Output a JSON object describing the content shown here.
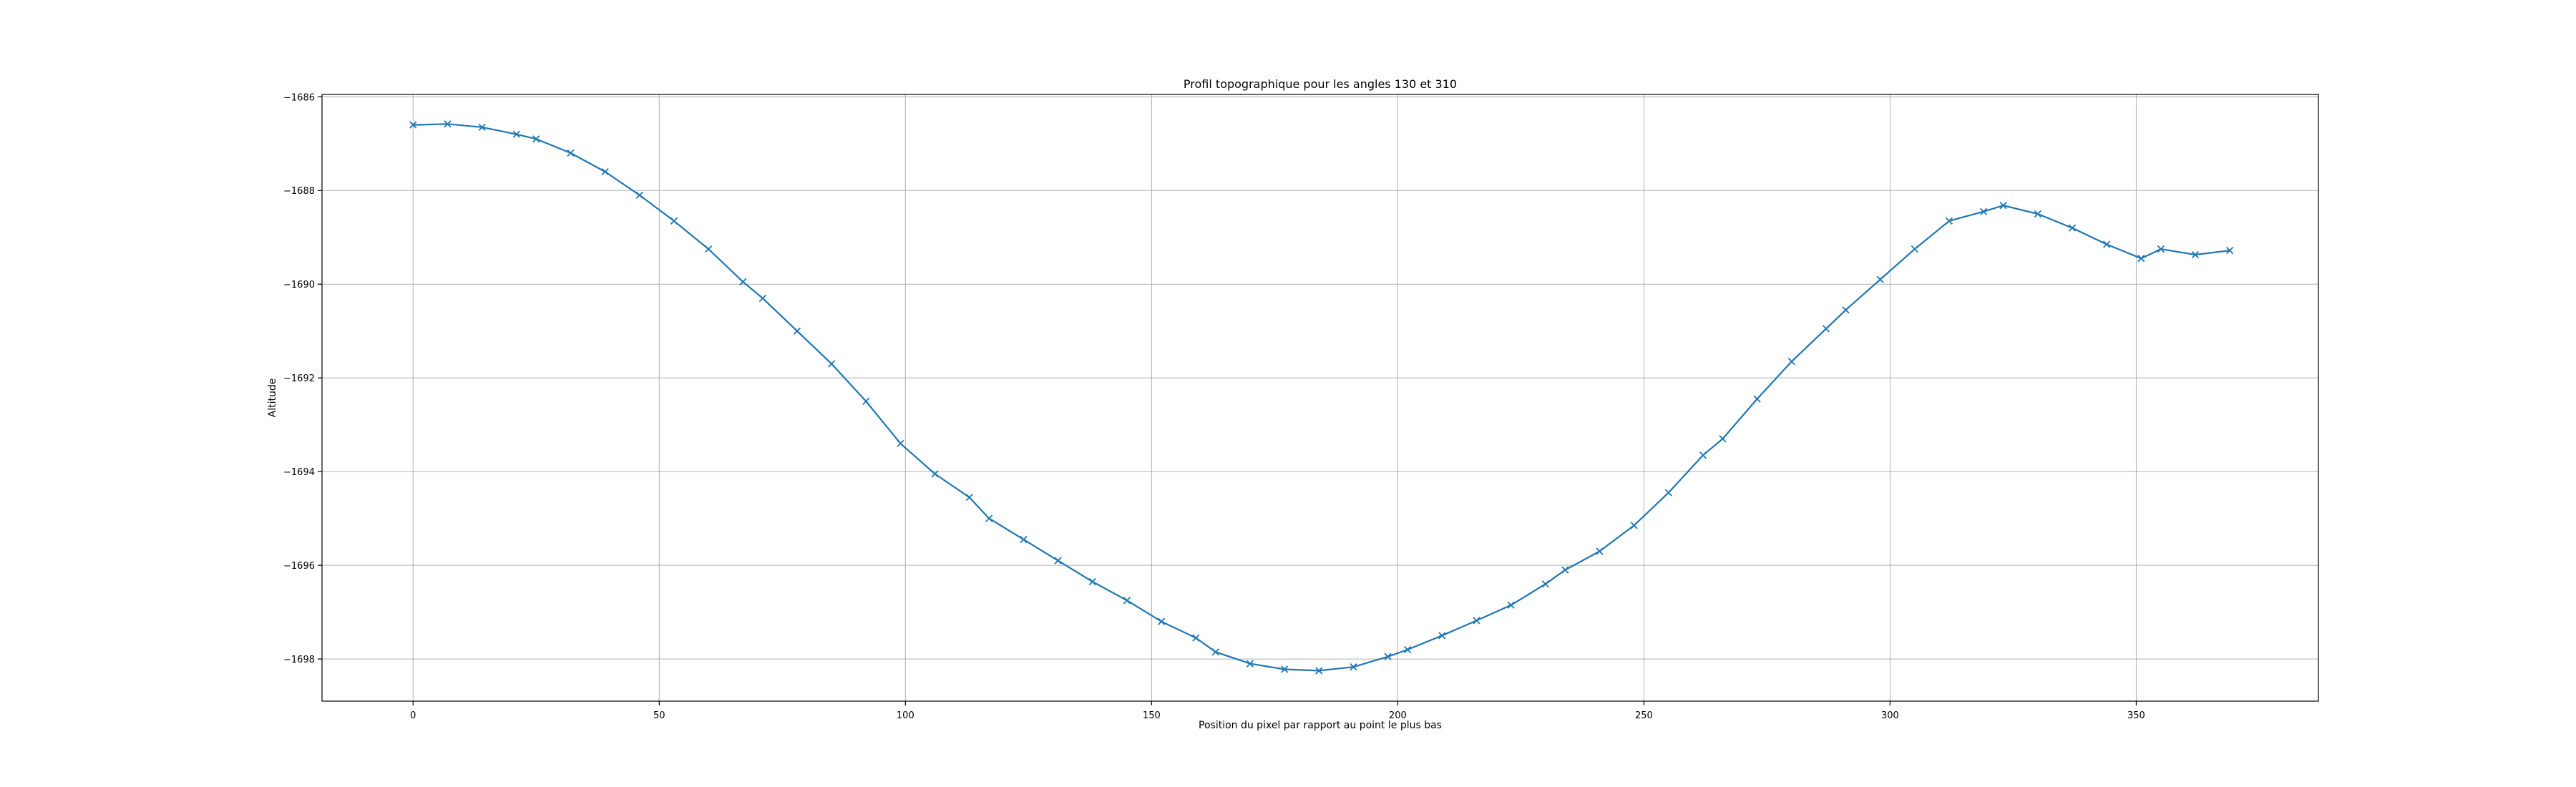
{
  "chart_data": {
    "type": "line",
    "title": "Profil topographique pour les angles 130 et 310",
    "xlabel": "Position du pixel par rapport au point le plus bas",
    "ylabel": "Altitude",
    "xlim": [
      -18.5,
      387
    ],
    "ylim": [
      -1698.9,
      -1685.95
    ],
    "xticks": [
      0,
      50,
      100,
      150,
      200,
      250,
      300,
      350
    ],
    "yticks": [
      -1686,
      -1688,
      -1690,
      -1692,
      -1694,
      -1696,
      -1698
    ],
    "grid": true,
    "line_color": "#1f77b4",
    "marker": "x",
    "series": [
      {
        "x": [
          0,
          7,
          14,
          21,
          25,
          32,
          39,
          46,
          53,
          60,
          67,
          71,
          78,
          85,
          92,
          99,
          106,
          113,
          117,
          124,
          131,
          138,
          145,
          152,
          159,
          163,
          170,
          177,
          184,
          191,
          198,
          202,
          209,
          216,
          223,
          230,
          234,
          241,
          248,
          255,
          262,
          266,
          273,
          280,
          287,
          291,
          298,
          305,
          312,
          319,
          323,
          330,
          337,
          344,
          351,
          355,
          362,
          369
        ],
        "y": [
          -1686.6,
          -1686.58,
          -1686.65,
          -1686.8,
          -1686.9,
          -1687.2,
          -1687.6,
          -1688.1,
          -1688.65,
          -1689.25,
          -1689.95,
          -1690.3,
          -1691.0,
          -1691.7,
          -1692.5,
          -1693.4,
          -1694.05,
          -1694.55,
          -1695.0,
          -1695.45,
          -1695.9,
          -1696.35,
          -1696.75,
          -1697.2,
          -1697.55,
          -1697.85,
          -1698.1,
          -1698.22,
          -1698.25,
          -1698.17,
          -1697.95,
          -1697.8,
          -1697.5,
          -1697.18,
          -1696.85,
          -1696.4,
          -1696.1,
          -1695.7,
          -1695.15,
          -1694.45,
          -1693.65,
          -1693.3,
          -1692.45,
          -1691.65,
          -1690.95,
          -1690.55,
          -1689.9,
          -1689.25,
          -1688.65,
          -1688.45,
          -1688.32,
          -1688.5,
          -1688.8,
          -1689.15,
          -1689.45,
          -1689.25,
          -1689.37,
          -1689.28
        ]
      }
    ]
  }
}
